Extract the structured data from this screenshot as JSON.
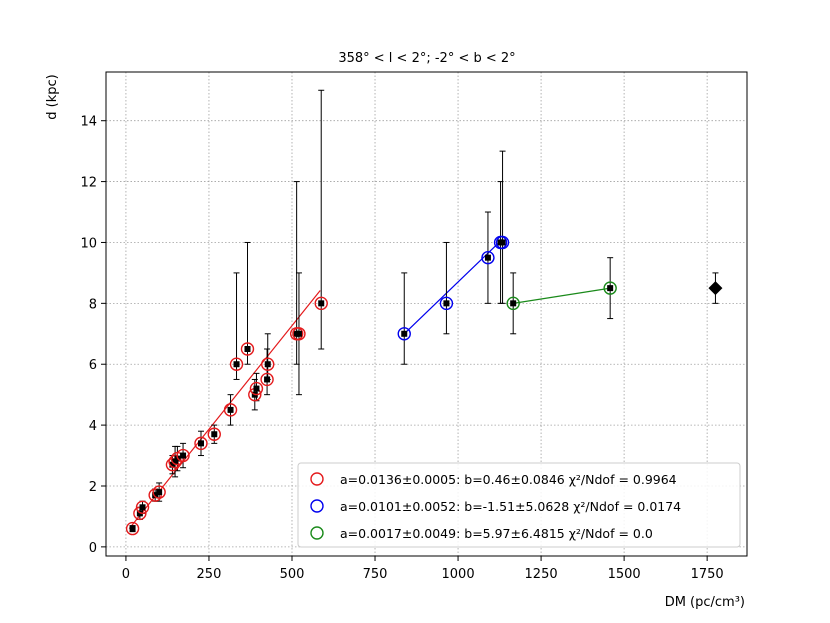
{
  "chart_data": {
    "type": "scatter",
    "title": "358° < l < 2°; -2° < b < 2°",
    "xlabel": "DM (pc/cm³)",
    "ylabel": "d (kpc)",
    "xlim": [
      -60,
      1870
    ],
    "ylim": [
      -0.3,
      15.6
    ],
    "xticks": [
      0,
      250,
      500,
      750,
      1000,
      1250,
      1500,
      1750
    ],
    "yticks": [
      0,
      2,
      4,
      6,
      8,
      10,
      12,
      14
    ],
    "grid": true,
    "legend_position": "lower-right",
    "series": [
      {
        "color": "#e41a1c",
        "legend": "a=0.0136±0.0005: b=0.46±0.0846 χ²/Ndof = 0.9964",
        "fit": {
          "x": [
            10,
            585
          ],
          "y": [
            0.6,
            8.42
          ]
        },
        "points": [
          {
            "x": 20,
            "y": 0.6,
            "lo": 0.5,
            "hi": 0.7
          },
          {
            "x": 42,
            "y": 1.1,
            "lo": 0.9,
            "hi": 1.3
          },
          {
            "x": 50,
            "y": 1.3,
            "lo": 1.1,
            "hi": 1.5
          },
          {
            "x": 88,
            "y": 1.7,
            "lo": 1.5,
            "hi": 1.9
          },
          {
            "x": 100,
            "y": 1.8,
            "lo": 1.5,
            "hi": 2.1
          },
          {
            "x": 140,
            "y": 2.7,
            "lo": 2.4,
            "hi": 3.0
          },
          {
            "x": 148,
            "y": 2.8,
            "lo": 2.3,
            "hi": 3.3
          },
          {
            "x": 155,
            "y": 2.9,
            "lo": 2.5,
            "hi": 3.3
          },
          {
            "x": 172,
            "y": 3.0,
            "lo": 2.6,
            "hi": 3.4
          },
          {
            "x": 226,
            "y": 3.4,
            "lo": 3.0,
            "hi": 3.8
          },
          {
            "x": 266,
            "y": 3.7,
            "lo": 3.4,
            "hi": 4.0
          },
          {
            "x": 315,
            "y": 4.5,
            "lo": 4.0,
            "hi": 5.0
          },
          {
            "x": 333,
            "y": 6.0,
            "lo": 5.5,
            "hi": 9.0
          },
          {
            "x": 366,
            "y": 6.5,
            "lo": 6.0,
            "hi": 10.0
          },
          {
            "x": 388,
            "y": 5.0,
            "lo": 4.5,
            "hi": 5.5
          },
          {
            "x": 393,
            "y": 5.2,
            "lo": 4.8,
            "hi": 5.7
          },
          {
            "x": 425,
            "y": 5.5,
            "lo": 5.0,
            "hi": 6.5
          },
          {
            "x": 427,
            "y": 6.0,
            "lo": 5.5,
            "hi": 7.0
          },
          {
            "x": 514,
            "y": 7.0,
            "lo": 6.0,
            "hi": 12.0
          },
          {
            "x": 521,
            "y": 7.0,
            "lo": 5.0,
            "hi": 9.0
          },
          {
            "x": 588,
            "y": 8.0,
            "lo": 6.5,
            "hi": 15.0
          }
        ]
      },
      {
        "color": "#0000ee",
        "legend": "a=0.0101±0.0052: b=-1.51±5.0628 χ²/Ndof = 0.0174",
        "fit": {
          "x": [
            838,
            1133
          ],
          "y": [
            7.0,
            10.1
          ]
        },
        "points": [
          {
            "x": 838,
            "y": 7.0,
            "lo": 6.0,
            "hi": 9.0
          },
          {
            "x": 965,
            "y": 8.0,
            "lo": 7.0,
            "hi": 10.0
          },
          {
            "x": 1090,
            "y": 9.5,
            "lo": 8.0,
            "hi": 11.0
          },
          {
            "x": 1128,
            "y": 10.0,
            "lo": 8.0,
            "hi": 12.0
          },
          {
            "x": 1134,
            "y": 10.0,
            "lo": 8.0,
            "hi": 13.0
          }
        ]
      },
      {
        "color": "#1a8a1a",
        "legend": "a=0.0017±0.0049: b=5.97±6.4815 χ²/Ndof = 0.0",
        "fit": {
          "x": [
            1166,
            1459
          ],
          "y": [
            8.0,
            8.5
          ]
        },
        "points": [
          {
            "x": 1166,
            "y": 8.0,
            "lo": 7.0,
            "hi": 9.0
          },
          {
            "x": 1458,
            "y": 8.5,
            "lo": 7.5,
            "hi": 9.5
          }
        ]
      }
    ],
    "extra_point": {
      "x": 1775,
      "y": 8.5,
      "lo": 8.0,
      "hi": 9.0,
      "marker": "diamond"
    }
  }
}
